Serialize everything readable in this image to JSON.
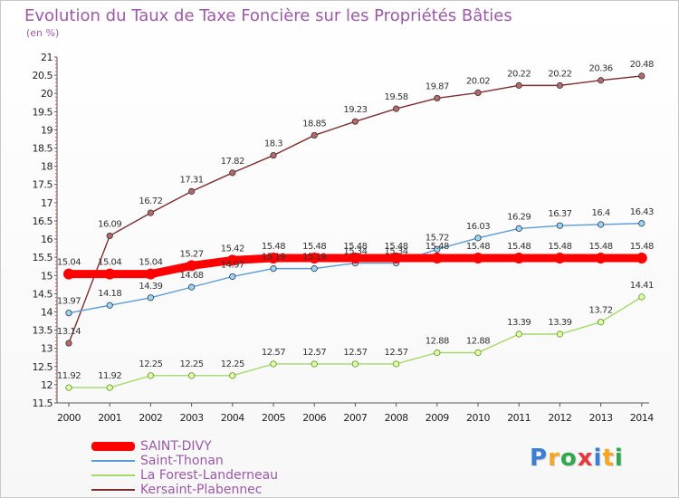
{
  "chart_data": {
    "type": "line",
    "title": "Evolution du Taux de Taxe Foncière sur les Propriétés Bâties",
    "subtitle": "(en %)",
    "x": [
      "2000",
      "2001",
      "2002",
      "2003",
      "2004",
      "2005",
      "2006",
      "2007",
      "2008",
      "2009",
      "2010",
      "2011",
      "2012",
      "2013",
      "2014"
    ],
    "ylim": [
      11.5,
      21
    ],
    "y_ticks": [
      "11.5",
      "12",
      "12.5",
      "13",
      "13.5",
      "14",
      "14.5",
      "15",
      "15.5",
      "16",
      "16.5",
      "17",
      "17.5",
      "18",
      "18.5",
      "19",
      "19.5",
      "20",
      "20.5",
      "21"
    ],
    "grid": false,
    "legend_position": "bottom-left",
    "series": [
      {
        "name": "SAINT-DIVY",
        "color": "#ff0000",
        "values": [
          15.04,
          15.04,
          15.04,
          15.27,
          15.42,
          15.48,
          15.48,
          15.48,
          15.48,
          15.48,
          15.48,
          15.48,
          15.48,
          15.48,
          15.48
        ],
        "labels": [
          "15.04",
          "15.04",
          "15.04",
          "15.27",
          "15.42",
          "15.48",
          "15.48",
          "15.48",
          "15.48",
          "15.48",
          "15.48",
          "15.48",
          "15.48",
          "15.48",
          "15.48"
        ]
      },
      {
        "name": "Saint-Thonan",
        "color": "#5b9bd5",
        "values": [
          13.97,
          14.18,
          14.39,
          14.68,
          14.97,
          15.19,
          15.19,
          15.34,
          15.34,
          15.72,
          16.03,
          16.29,
          16.37,
          16.4,
          16.43
        ],
        "labels": [
          "13.97",
          "14.18",
          "14.39",
          "14.68",
          "14.97",
          "15.19",
          "15.19",
          "15.34",
          "15.34",
          "15.72",
          "16.03",
          "16.29",
          "16.37",
          "16.4",
          "16.43"
        ]
      },
      {
        "name": "La Forest-Landerneau",
        "color": "#a6d96a",
        "values": [
          11.92,
          11.92,
          12.25,
          12.25,
          12.25,
          12.57,
          12.57,
          12.57,
          12.57,
          12.88,
          12.88,
          13.39,
          13.39,
          13.72,
          14.41
        ],
        "labels": [
          "11.92",
          "11.92",
          "12.25",
          "12.25",
          "12.25",
          "12.57",
          "12.57",
          "12.57",
          "12.57",
          "12.88",
          "12.88",
          "13.39",
          "13.39",
          "13.72",
          "14.41"
        ]
      },
      {
        "name": "Kersaint-Plabennec",
        "color": "#7b2d2d",
        "values": [
          13.14,
          16.09,
          16.72,
          17.31,
          17.82,
          18.3,
          18.85,
          19.23,
          19.58,
          19.87,
          20.02,
          20.22,
          20.22,
          20.36,
          20.48
        ],
        "labels": [
          "13.14",
          "16.09",
          "16.72",
          "17.31",
          "17.82",
          "18.3",
          "18.85",
          "19.23",
          "19.58",
          "19.87",
          "20.02",
          "20.22",
          "20.22",
          "20.36",
          "20.48"
        ]
      }
    ]
  },
  "logo_text": [
    "P",
    "r",
    "o",
    "x",
    "i",
    "t",
    "i"
  ],
  "logo_colors": [
    "#3a7fd5",
    "#f5a623",
    "#2fa84f",
    "#e23b3b",
    "#3a7fd5",
    "#f5a623",
    "#2fa84f"
  ]
}
